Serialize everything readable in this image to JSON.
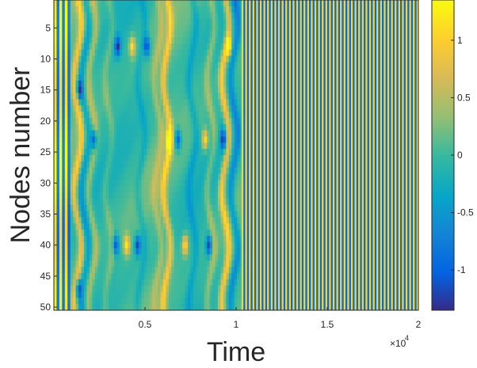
{
  "chart_data": {
    "type": "heatmap",
    "xlabel": "Time",
    "ylabel": "Nodes number",
    "x_range": [
      0,
      20000
    ],
    "y_range": [
      1,
      50
    ],
    "x_ticks": [
      5000,
      10000,
      15000,
      20000
    ],
    "x_tick_labels": [
      "0.5",
      "1",
      "1.5",
      "2"
    ],
    "x_exponent_label": "×10",
    "x_exponent_power": "4",
    "y_ticks": [
      5,
      10,
      15,
      20,
      25,
      30,
      35,
      40,
      45,
      50
    ],
    "y_tick_labels": [
      "5",
      "10",
      "15",
      "20",
      "25",
      "30",
      "35",
      "40",
      "45",
      "50"
    ],
    "colorbar": {
      "range": [
        -1.35,
        1.35
      ],
      "ticks": [
        -1,
        -0.5,
        0,
        0.5,
        1
      ],
      "tick_labels": [
        "-1",
        "-0.5",
        "0",
        "0.5",
        "1"
      ],
      "colormap": "parula"
    },
    "description_regimes": [
      {
        "x_start": 0,
        "x_end": 10300,
        "pattern": "irregular spatiotemporal"
      },
      {
        "x_start": 10300,
        "x_end": 20000,
        "pattern": "regular periodic stripes"
      }
    ],
    "grid": false
  }
}
